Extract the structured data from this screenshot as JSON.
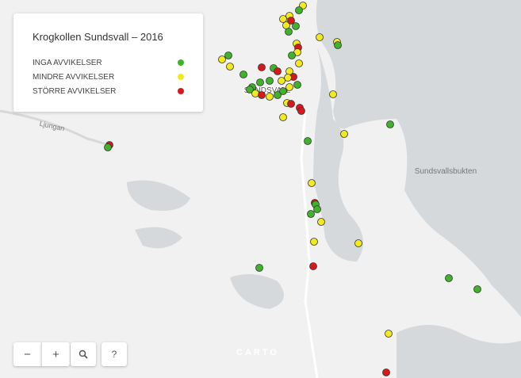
{
  "legend": {
    "title": "Krogkollen Sundsvall – 2016",
    "items": [
      {
        "label": "INGA AVVIKELSER",
        "color": "#3fb32a"
      },
      {
        "label": "MINDRE AVVIKELSER",
        "color": "#f3ea1d"
      },
      {
        "label": "STÖRRE AVVIKELSER",
        "color": "#d8191c"
      }
    ]
  },
  "map": {
    "labels": [
      "SUNDSVALL",
      "Sundsvallsbukten",
      "Ljungan"
    ],
    "attribution": "CARTO"
  },
  "controls": {
    "zoom_out": "−",
    "zoom_in": "+",
    "help": "?"
  }
}
